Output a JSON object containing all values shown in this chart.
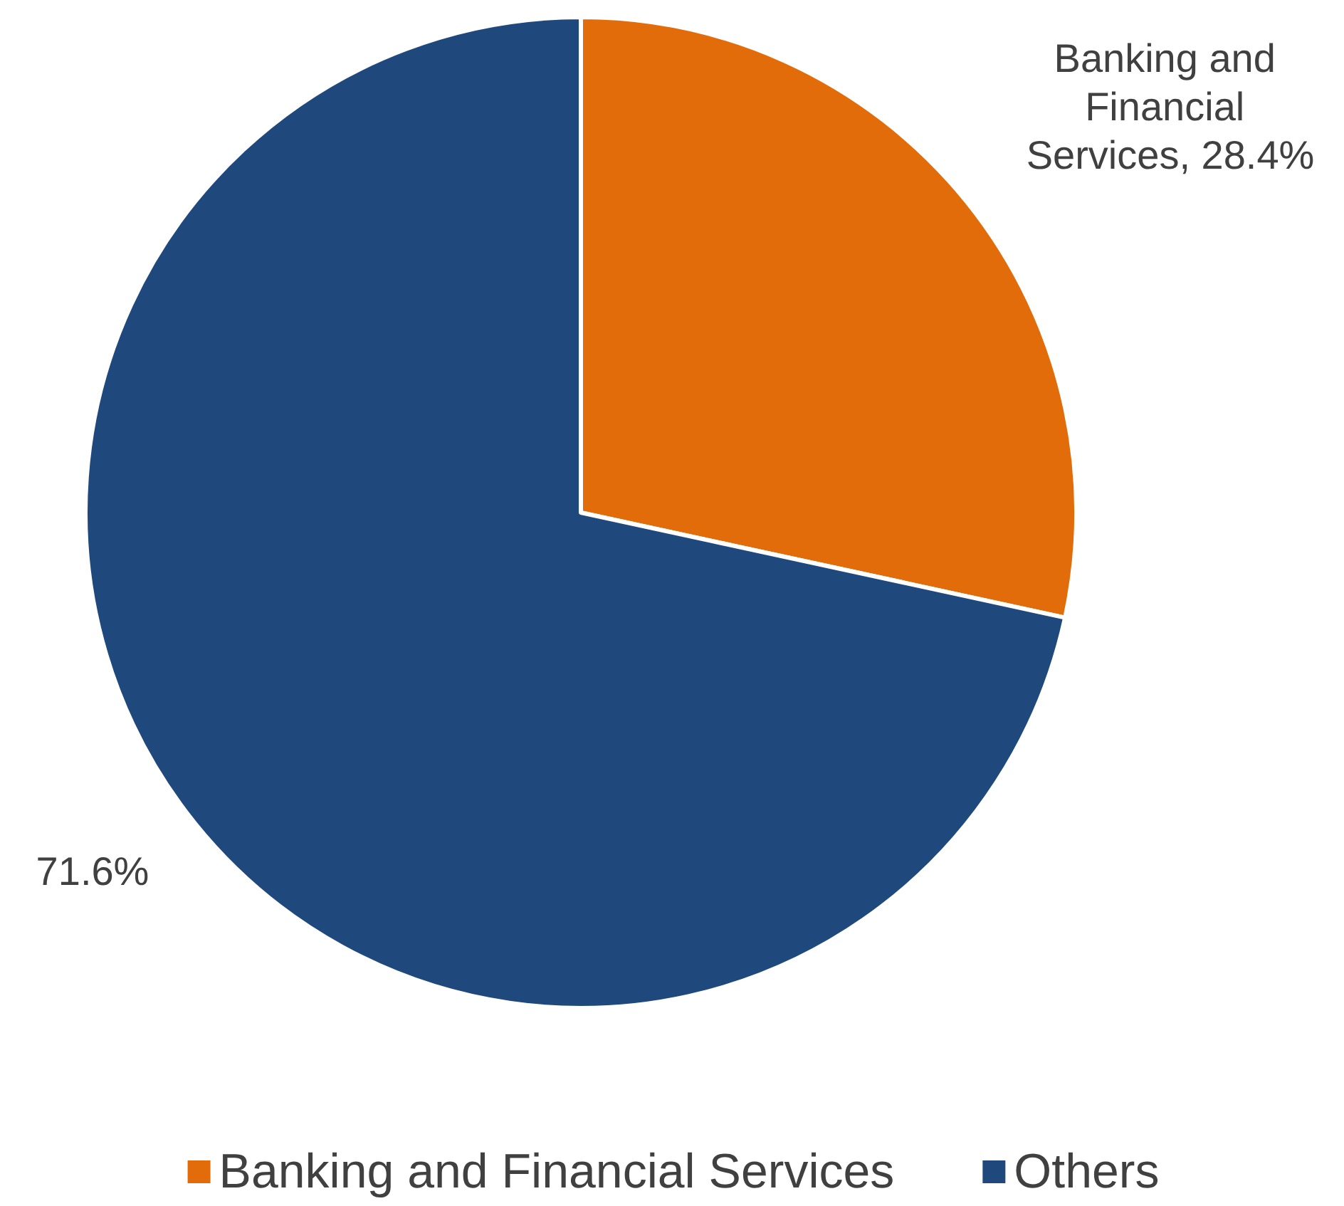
{
  "chart_data": {
    "type": "pie",
    "categories": [
      "Banking and Financial Services",
      "Others"
    ],
    "values": [
      28.4,
      71.6
    ],
    "colors": [
      "#e36c0a",
      "#1f497d"
    ],
    "value_labels": [
      "Banking and Financial Services, 28.4%",
      "71.6%"
    ],
    "legend": "bottom"
  }
}
